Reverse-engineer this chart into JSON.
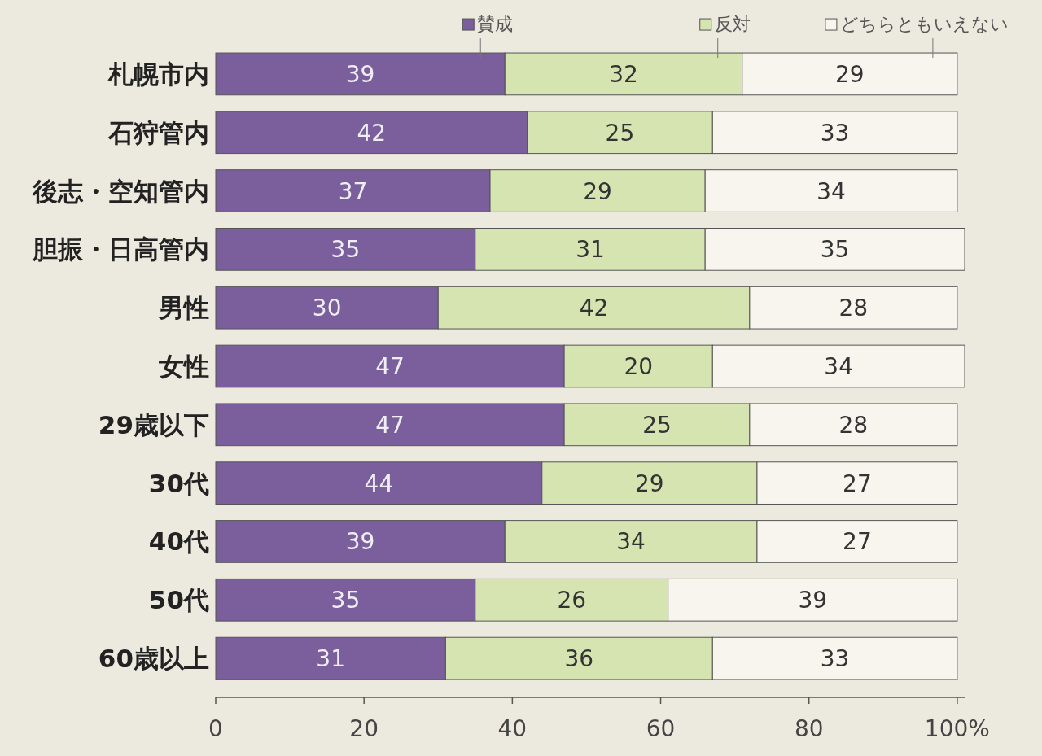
{
  "chart_data": {
    "type": "bar",
    "orientation": "horizontal",
    "stacked": true,
    "data_labels": true,
    "legend": "top",
    "grid": false,
    "categories": [
      "札幌市内",
      "石狩管内",
      "後志・空知管内",
      "胆振・日高管内",
      "男性",
      "女性",
      "29歳以下",
      "30代",
      "40代",
      "50代",
      "60歳以上"
    ],
    "series": [
      {
        "name": "賛成",
        "color": "#7a5f9c",
        "values": [
          39,
          42,
          37,
          35,
          30,
          47,
          47,
          44,
          39,
          35,
          31
        ]
      },
      {
        "name": "反対",
        "color": "#d6e4b2",
        "values": [
          32,
          25,
          29,
          31,
          42,
          20,
          25,
          29,
          34,
          26,
          36
        ]
      },
      {
        "name": "どちらともいえない",
        "color": "#f7f5ee",
        "values": [
          29,
          33,
          34,
          35,
          28,
          34,
          28,
          27,
          27,
          39,
          33
        ]
      }
    ],
    "xlim": [
      0,
      101
    ],
    "xticks": [
      0,
      20,
      40,
      60,
      80,
      {
        "value": 100,
        "label": "100%"
      }
    ]
  }
}
